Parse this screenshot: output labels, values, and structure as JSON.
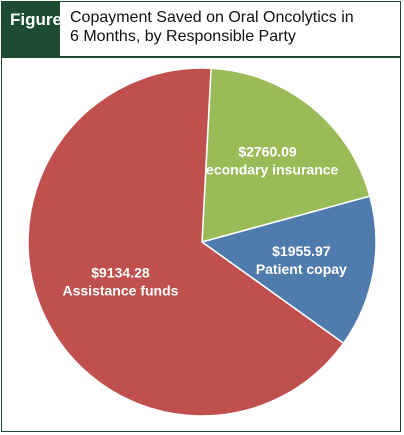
{
  "header": {
    "tag": "Figure",
    "title_lines": [
      "Copayment Saved on Oral Oncolytics in",
      "6 Months, by Responsible Party"
    ]
  },
  "chart_data": {
    "type": "pie",
    "title": "Copayment Saved on Oral Oncolytics in 6 Months, by Responsible Party",
    "slices": [
      {
        "label": "Secondary insurance",
        "value": 2760.09,
        "value_label": "$2760.09",
        "color": "#9bbb59"
      },
      {
        "label": "Patient copay",
        "value": 1955.97,
        "value_label": "$1955.97",
        "color": "#4f7bad"
      },
      {
        "label": "Assistance funds",
        "value": 9134.28,
        "value_label": "$9134.28",
        "color": "#c0504d"
      }
    ],
    "start_angle_deg": 3,
    "direction": "clockwise"
  }
}
